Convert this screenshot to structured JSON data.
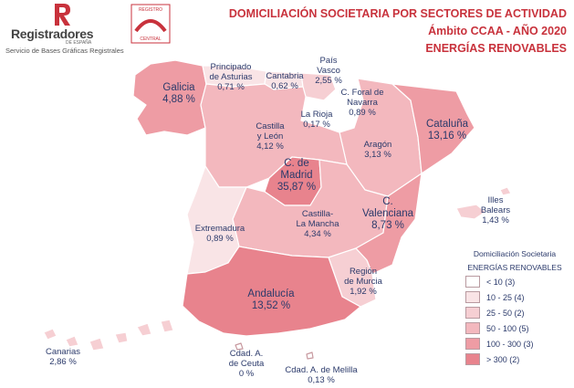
{
  "brand": {
    "name": "Registradores",
    "sub": "DE ESPAÑA",
    "tagline": "Servicio de Bases Gráficas Registrales",
    "central_top": "REGISTRO",
    "central_bottom": "CENTRAL"
  },
  "header": {
    "title": "DOMICILIACIÓN SOCIETARIA POR SECTORES DE ACTIVIDAD",
    "subtitle": "Ámbito CCAA - AÑO 2020",
    "sector": "ENERGÍAS RENOVABLES"
  },
  "regions": [
    {
      "name": "Galicia",
      "value": "4,88 %"
    },
    {
      "name": "Principado de Asturias",
      "value": "0,71 %"
    },
    {
      "name": "Cantabria",
      "value": "0,62 %"
    },
    {
      "name": "País Vasco",
      "value": "2,55 %"
    },
    {
      "name": "C. Foral de Navarra",
      "value": "0,89 %"
    },
    {
      "name": "Cataluña",
      "value": "13,16 %"
    },
    {
      "name": "La Rioja",
      "value": "0,17 %"
    },
    {
      "name": "Castilla y León",
      "value": "4,12 %"
    },
    {
      "name": "Aragón",
      "value": "3,13 %"
    },
    {
      "name": "C. de Madrid",
      "value": "35,87 %"
    },
    {
      "name": "Illes Balears",
      "value": "1,43 %"
    },
    {
      "name": "Castilla-La Mancha",
      "value": "4,34 %"
    },
    {
      "name": "C. Valenciana",
      "value": "8,73 %"
    },
    {
      "name": "Extremadura",
      "value": "0,89 %"
    },
    {
      "name": "Región de Murcia",
      "value": "1,92 %"
    },
    {
      "name": "Andalucía",
      "value": "13,52 %"
    },
    {
      "name": "Canarias",
      "value": "2,86 %"
    },
    {
      "name": "Cdad. A. de Ceuta",
      "value": "0 %"
    },
    {
      "name": "Cdad. A. de Melilla",
      "value": "0,13 %"
    }
  ],
  "label_parts": {
    "asturias": [
      "Principado",
      "de Asturias"
    ],
    "pais_vasco": [
      "País",
      "Vasco"
    ],
    "navarra": [
      "C. Foral de",
      "Navarra"
    ],
    "cyl": [
      "Castilla",
      "y León"
    ],
    "madrid": [
      "C. de",
      "Madrid"
    ],
    "illes": [
      "Illes",
      "Balears"
    ],
    "clm": [
      "Castilla-",
      "La Mancha"
    ],
    "valenciana": [
      "C.",
      "Valenciana"
    ],
    "murcia": [
      "Región",
      "de Murcia"
    ],
    "ceuta": [
      "Cdad. A.",
      "de Ceuta"
    ]
  },
  "legend": {
    "title": "Domiciliación Societaria",
    "subtitle": "ENERGÍAS RENOVABLES",
    "items": [
      {
        "label": "< 10 (3)",
        "color": "#ffffff"
      },
      {
        "label": "10 - 25 (4)",
        "color": "#f9e4e6"
      },
      {
        "label": "25 - 50 (2)",
        "color": "#f6cfd3"
      },
      {
        "label": "50 - 100 (5)",
        "color": "#f3b8be"
      },
      {
        "label": "100 - 300 (3)",
        "color": "#ee9ca4"
      },
      {
        "label": "> 300 (2)",
        "color": "#e8838d"
      }
    ]
  }
}
